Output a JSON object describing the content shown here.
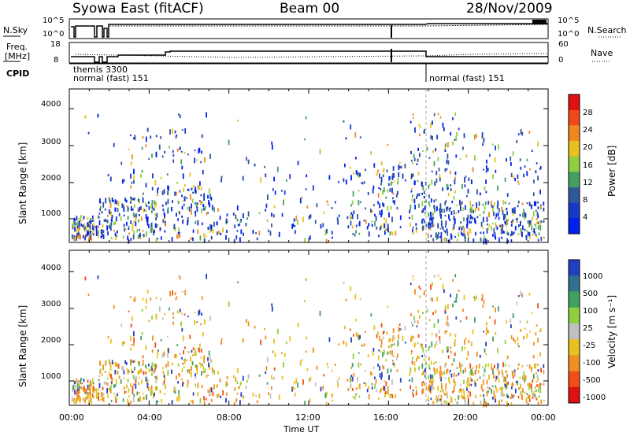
{
  "header": {
    "station": "Syowa East (fitACF)",
    "beam": "Beam 00",
    "date": "28/Nov/2009"
  },
  "noise_panel": {
    "left_label": "N.Sky",
    "right_label": "N.Search",
    "left_ticks": [
      "10^5",
      "10^0"
    ],
    "right_ticks": [
      "10^5",
      "10^0"
    ]
  },
  "freq_panel": {
    "left_label_line1": "Freq.",
    "left_label_line2": "[MHz]",
    "left_ticks": [
      "18",
      "8"
    ],
    "right_label": "Nave",
    "right_ticks": [
      "60",
      "0"
    ]
  },
  "cpid": {
    "label": "CPID",
    "entries": [
      {
        "text": "themis  3300"
      },
      {
        "text": "normal (fast) 151"
      },
      {
        "text": "normal (fast) 151"
      }
    ]
  },
  "axes": {
    "y_label": "Slant Range [km]",
    "y_ticks": [
      "4000",
      "3000",
      "2000",
      "1000"
    ],
    "x_ticks": [
      "00:00",
      "04:00",
      "08:00",
      "12:00",
      "16:00",
      "20:00",
      "00:00"
    ],
    "x_label": "Time UT"
  },
  "power_scale": {
    "label": "Power [dB]",
    "ticks": [
      "28",
      "24",
      "20",
      "16",
      "12",
      "8",
      "4"
    ],
    "colors": [
      "#e01010",
      "#f04818",
      "#f08820",
      "#e8c020",
      "#90d040",
      "#48a060",
      "#305898",
      "#1838c8",
      "#0020f0"
    ]
  },
  "velocity_scale": {
    "label": "Velocity [m s⁻¹]",
    "ticks": [
      "1000",
      "500",
      "100",
      "25",
      "-25",
      "-100",
      "-500",
      "-1000"
    ],
    "colors": [
      "#2040c0",
      "#307090",
      "#40a060",
      "#90d040",
      "#c0c0c0",
      "#e8c020",
      "#f09020",
      "#f05018",
      "#e01010"
    ]
  }
}
